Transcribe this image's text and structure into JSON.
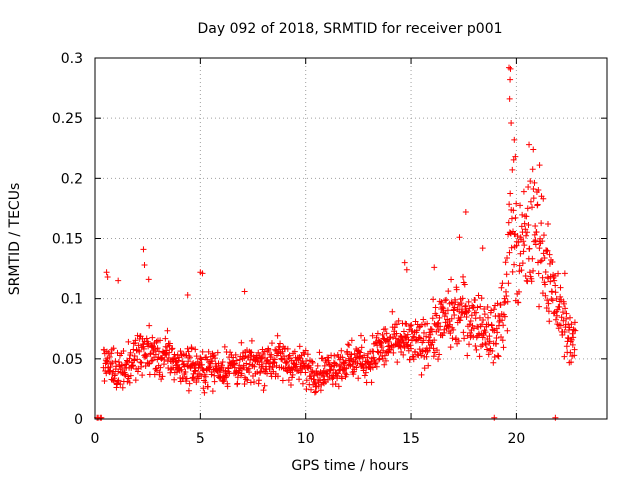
{
  "chart_data": {
    "type": "scatter",
    "title": "Day 092 of 2018, SRMTID for receiver p001",
    "xlabel": "GPS time / hours",
    "ylabel": "SRMTID / TECUs",
    "xlim": [
      0,
      24.3
    ],
    "ylim": [
      0,
      0.3
    ],
    "xticks": [
      0,
      5,
      10,
      15,
      20
    ],
    "xtick_labels": [
      "0",
      "5",
      "10",
      "15",
      "20"
    ],
    "yticks": [
      0,
      0.05,
      0.1,
      0.15,
      0.2,
      0.25,
      0.3
    ],
    "ytick_labels": [
      "0",
      "0.05",
      "0.1",
      "0.15",
      "0.2",
      "0.25",
      "0.3"
    ],
    "grid": true,
    "legend": "none",
    "marker": "+",
    "series": [
      {
        "name": "SRMTID",
        "color": "#ff0000",
        "profile": [
          [
            0.4,
            0.05,
            0.012
          ],
          [
            1.0,
            0.042,
            0.012
          ],
          [
            1.5,
            0.043,
            0.012
          ],
          [
            2.0,
            0.052,
            0.014
          ],
          [
            2.5,
            0.058,
            0.014
          ],
          [
            3.0,
            0.05,
            0.012
          ],
          [
            3.5,
            0.052,
            0.013
          ],
          [
            4.0,
            0.044,
            0.011
          ],
          [
            4.5,
            0.045,
            0.012
          ],
          [
            5.0,
            0.04,
            0.011
          ],
          [
            5.5,
            0.043,
            0.011
          ],
          [
            6.0,
            0.042,
            0.011
          ],
          [
            6.5,
            0.045,
            0.012
          ],
          [
            7.0,
            0.042,
            0.011
          ],
          [
            7.5,
            0.045,
            0.011
          ],
          [
            8.0,
            0.047,
            0.012
          ],
          [
            8.5,
            0.05,
            0.013
          ],
          [
            9.0,
            0.048,
            0.012
          ],
          [
            9.5,
            0.045,
            0.011
          ],
          [
            10.0,
            0.043,
            0.011
          ],
          [
            10.5,
            0.038,
            0.01
          ],
          [
            11.0,
            0.04,
            0.01
          ],
          [
            11.5,
            0.045,
            0.011
          ],
          [
            12.0,
            0.048,
            0.012
          ],
          [
            12.5,
            0.05,
            0.012
          ],
          [
            13.0,
            0.048,
            0.012
          ],
          [
            13.5,
            0.058,
            0.013
          ],
          [
            14.0,
            0.062,
            0.014
          ],
          [
            14.5,
            0.065,
            0.014
          ],
          [
            15.0,
            0.062,
            0.013
          ],
          [
            15.5,
            0.062,
            0.014
          ],
          [
            16.0,
            0.07,
            0.016
          ],
          [
            16.5,
            0.08,
            0.018
          ],
          [
            17.0,
            0.085,
            0.02
          ],
          [
            17.5,
            0.088,
            0.02
          ],
          [
            18.0,
            0.082,
            0.018
          ],
          [
            18.5,
            0.078,
            0.018
          ],
          [
            19.0,
            0.068,
            0.016
          ],
          [
            19.5,
            0.1,
            0.03
          ],
          [
            19.8,
            0.18,
            0.04
          ],
          [
            20.0,
            0.13,
            0.035
          ],
          [
            20.5,
            0.15,
            0.035
          ],
          [
            21.0,
            0.16,
            0.035
          ],
          [
            21.3,
            0.14,
            0.03
          ],
          [
            21.6,
            0.11,
            0.025
          ],
          [
            22.0,
            0.09,
            0.02
          ],
          [
            22.5,
            0.07,
            0.015
          ],
          [
            22.8,
            0.06,
            0.012
          ]
        ],
        "outliers": [
          [
            0.55,
            0.122
          ],
          [
            0.6,
            0.118
          ],
          [
            1.1,
            0.115
          ],
          [
            2.3,
            0.141
          ],
          [
            2.35,
            0.128
          ],
          [
            2.55,
            0.116
          ],
          [
            4.4,
            0.103
          ],
          [
            5.0,
            0.122
          ],
          [
            5.1,
            0.121
          ],
          [
            7.1,
            0.106
          ],
          [
            14.7,
            0.13
          ],
          [
            14.8,
            0.124
          ],
          [
            16.1,
            0.126
          ],
          [
            17.3,
            0.151
          ],
          [
            17.6,
            0.172
          ],
          [
            18.4,
            0.142
          ],
          [
            19.65,
            0.292
          ],
          [
            19.72,
            0.291
          ],
          [
            19.7,
            0.282
          ],
          [
            19.68,
            0.266
          ],
          [
            19.75,
            0.246
          ],
          [
            19.9,
            0.232
          ],
          [
            19.95,
            0.218
          ],
          [
            20.6,
            0.228
          ],
          [
            20.8,
            0.224
          ],
          [
            21.1,
            0.211
          ],
          [
            21.5,
            0.162
          ],
          [
            22.3,
            0.121
          ]
        ],
        "zero_markers": [
          0.1,
          0.15,
          0.25,
          0.3,
          18.95,
          21.85
        ]
      }
    ]
  }
}
